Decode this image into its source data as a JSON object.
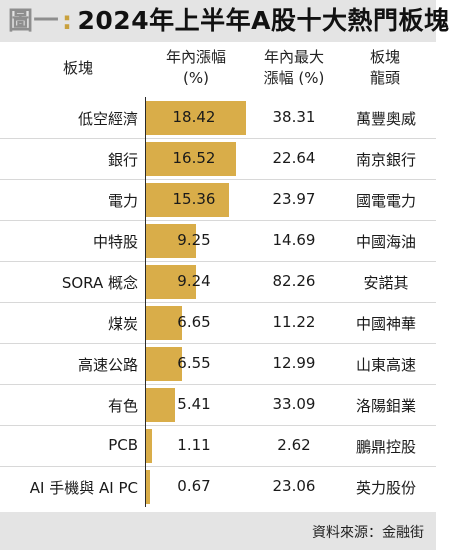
{
  "figure_label": "圖一",
  "title": "2024年上半年A股十大熱門板塊",
  "columns": {
    "sector": "板塊",
    "h1_gain_line1": "年內漲幅",
    "h1_gain_line2": "(%)",
    "max_gain_line1": "年內最大",
    "max_gain_line2": "漲幅 (%)",
    "leader_line1": "板塊",
    "leader_line2": "龍頭"
  },
  "source": "資料來源：金融街",
  "colors": {
    "bar": "#d9ad49",
    "title_separator": "#c9a13e",
    "band": "#e4e4e4"
  },
  "chart_data": {
    "type": "bar",
    "orientation": "horizontal",
    "categories": [
      "低空經濟",
      "銀行",
      "電力",
      "中特股",
      "SORA 概念",
      "煤炭",
      "高速公路",
      "有色",
      "PCB",
      "AI 手機與 AI PC"
    ],
    "values": [
      18.42,
      16.52,
      15.36,
      9.25,
      9.24,
      6.65,
      6.55,
      5.41,
      1.11,
      0.67
    ],
    "max_gain": [
      38.31,
      22.64,
      23.97,
      14.69,
      82.26,
      11.22,
      12.99,
      33.09,
      2.62,
      23.06
    ],
    "leaders": [
      "萬豐奧威",
      "南京銀行",
      "國電電力",
      "中國海油",
      "安諾其",
      "中國神華",
      "山東高速",
      "洛陽鉬業",
      "鵬鼎控股",
      "英力股份"
    ],
    "xlim": [
      0,
      18.42
    ],
    "grid": false
  }
}
